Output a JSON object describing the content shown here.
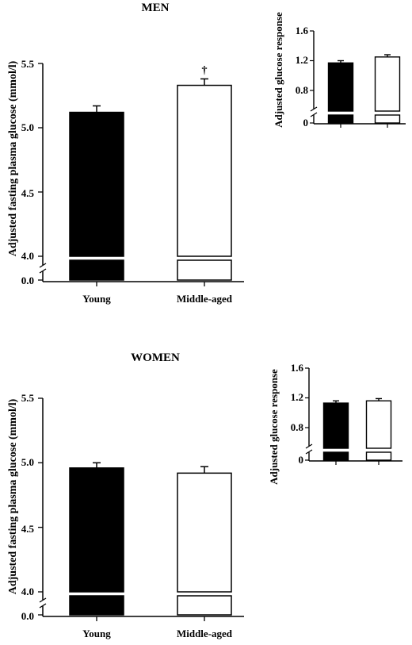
{
  "chart_data": [
    {
      "type": "bar",
      "title": "MEN",
      "xlabel": "",
      "ylabel": "Adjusted fasting plasma glucose (mmol/l)",
      "categories": [
        "Young",
        "Middle-aged"
      ],
      "values": [
        5.12,
        5.33
      ],
      "errors": [
        0.05,
        0.05
      ],
      "bar_fills": [
        "#000000",
        "#ffffff"
      ],
      "annotations": [
        "",
        "†"
      ],
      "ylim": [
        4.0,
        5.5
      ],
      "axis_break": true,
      "y_ticks": [
        "0.0",
        "4.0",
        "4.5",
        "5.0",
        "5.5"
      ]
    },
    {
      "type": "bar",
      "title": "",
      "xlabel": "",
      "ylabel": "Adjusted glucose response",
      "categories": [
        "Young",
        "Middle-aged"
      ],
      "values": [
        1.17,
        1.25
      ],
      "errors": [
        0.03,
        0.03
      ],
      "bar_fills": [
        "#000000",
        "#ffffff"
      ],
      "ylim": [
        0.4,
        1.6
      ],
      "axis_break": true,
      "y_ticks": [
        "0",
        "0.8",
        "1.2",
        "1.6"
      ]
    },
    {
      "type": "bar",
      "title": "WOMEN",
      "xlabel": "",
      "ylabel": "Adjusted fasting plasma glucose (mmol/l)",
      "categories": [
        "Young",
        "Middle-aged"
      ],
      "values": [
        4.96,
        4.92
      ],
      "errors": [
        0.04,
        0.05
      ],
      "bar_fills": [
        "#000000",
        "#ffffff"
      ],
      "annotations": [
        "",
        ""
      ],
      "ylim": [
        4.0,
        5.5
      ],
      "axis_break": true,
      "y_ticks": [
        "0.0",
        "4.0",
        "4.5",
        "5.0",
        "5.5"
      ]
    },
    {
      "type": "bar",
      "title": "",
      "xlabel": "",
      "ylabel": "Adjusted glucose response",
      "categories": [
        "Young",
        "Middle-aged"
      ],
      "values": [
        1.13,
        1.16
      ],
      "errors": [
        0.03,
        0.03
      ],
      "bar_fills": [
        "#000000",
        "#ffffff"
      ],
      "ylim": [
        0.4,
        1.6
      ],
      "axis_break": true,
      "y_ticks": [
        "0",
        "0.8",
        "1.2",
        "1.6"
      ]
    }
  ]
}
